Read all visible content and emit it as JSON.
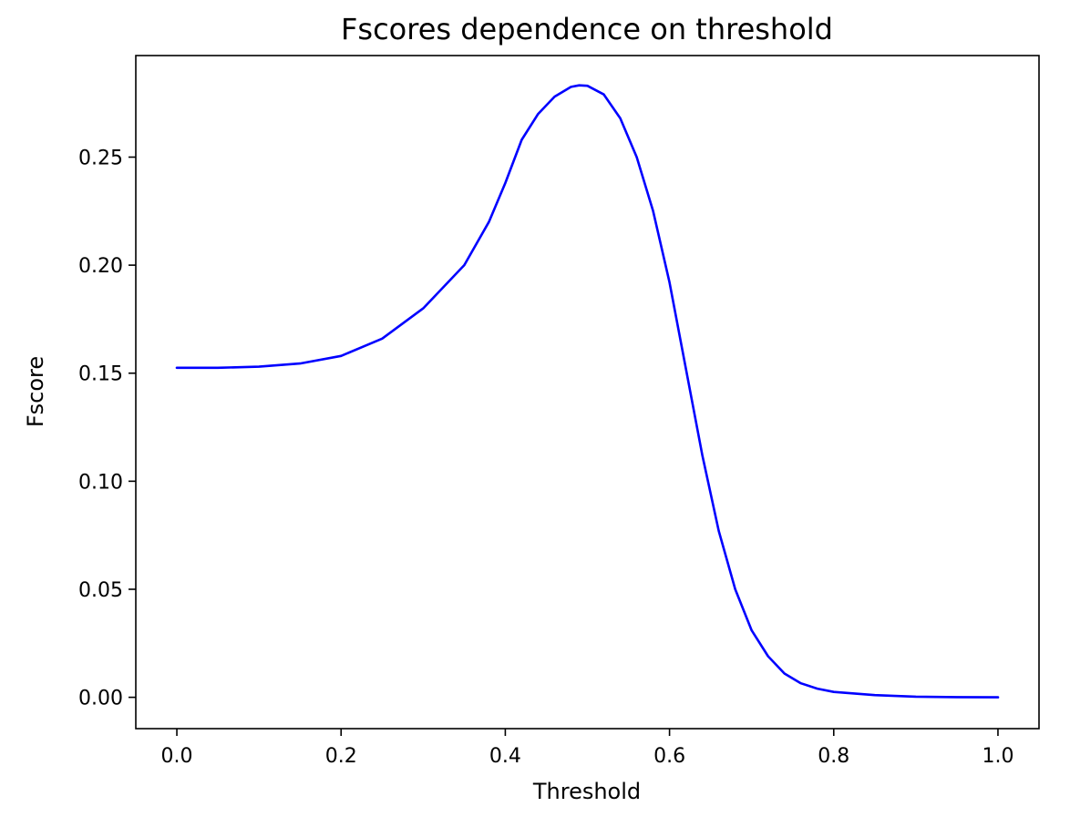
{
  "chart_data": {
    "type": "line",
    "title": "Fscores dependence on threshold",
    "xlabel": "Threshold",
    "ylabel": "Fscore",
    "xlim": [
      -0.05,
      1.05
    ],
    "ylim": [
      -0.0145,
      0.297
    ],
    "xticks": [
      0.0,
      0.2,
      0.4,
      0.6,
      0.8,
      1.0
    ],
    "xtick_labels": [
      "0.0",
      "0.2",
      "0.4",
      "0.6",
      "0.8",
      "1.0"
    ],
    "yticks": [
      0.0,
      0.05,
      0.1,
      0.15,
      0.2,
      0.25
    ],
    "ytick_labels": [
      "0.00",
      "0.05",
      "0.10",
      "0.15",
      "0.20",
      "0.25"
    ],
    "grid": false,
    "legend": "none",
    "line_color": "#0000ff",
    "series": [
      {
        "x": [
          0.0,
          0.05,
          0.1,
          0.15,
          0.2,
          0.25,
          0.3,
          0.35,
          0.38,
          0.4,
          0.42,
          0.44,
          0.46,
          0.48,
          0.49,
          0.5,
          0.52,
          0.54,
          0.56,
          0.58,
          0.6,
          0.62,
          0.64,
          0.66,
          0.68,
          0.7,
          0.72,
          0.74,
          0.76,
          0.78,
          0.8,
          0.85,
          0.9,
          0.95,
          1.0
        ],
        "values": [
          0.1525,
          0.1525,
          0.153,
          0.1545,
          0.158,
          0.166,
          0.18,
          0.2,
          0.22,
          0.238,
          0.258,
          0.27,
          0.278,
          0.2825,
          0.2832,
          0.283,
          0.279,
          0.268,
          0.25,
          0.225,
          0.192,
          0.152,
          0.112,
          0.077,
          0.05,
          0.031,
          0.019,
          0.011,
          0.0065,
          0.004,
          0.0025,
          0.001,
          0.0003,
          0.0001,
          0.0
        ]
      }
    ]
  }
}
